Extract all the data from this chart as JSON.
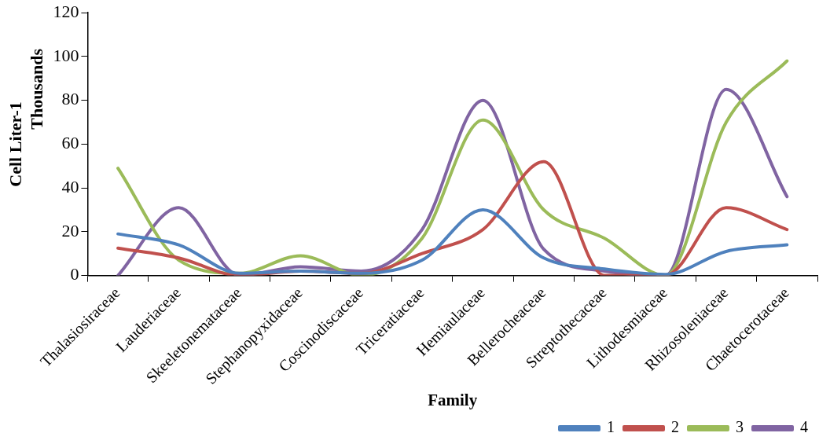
{
  "chart_data": {
    "type": "line",
    "xlabel": "Family",
    "ylabel": "Cell Liter-1",
    "annotations": [
      "Thousands"
    ],
    "categories": [
      "Thalasiosiraceae",
      "Lauderiaceae",
      "Skeeletonemataceae",
      "Stephanopyxidaceae",
      "Coscinodiscaceae",
      "Triceratiaceae",
      "Hemiaulaceae",
      "Bellerocheaceae",
      "Streptothecaceae",
      "Lithodesmiaceae",
      "Rhizosoleniaceae",
      "Chaetocerotaceae"
    ],
    "series": [
      {
        "name": "1",
        "color": "#4f81bd",
        "values": [
          19,
          14,
          1,
          2,
          1,
          7,
          30,
          8,
          3,
          0.5,
          11,
          14
        ]
      },
      {
        "name": "2",
        "color": "#c0504d",
        "values": [
          12.5,
          8,
          0,
          2,
          1,
          10,
          21,
          52,
          0,
          0,
          31,
          21
        ]
      },
      {
        "name": "3",
        "color": "#9bbb59",
        "values": [
          49,
          7,
          1,
          9,
          0,
          17,
          71,
          30,
          17,
          0,
          70,
          98
        ]
      },
      {
        "name": "4",
        "color": "#8064a2",
        "values": [
          0,
          31,
          0,
          4,
          2,
          21,
          80,
          12,
          2,
          0,
          85,
          36
        ]
      }
    ],
    "ylim": [
      0,
      120
    ],
    "yticks": [
      0,
      20,
      40,
      60,
      80,
      100,
      120
    ],
    "grid": false,
    "legend": "bottom right",
    "marker": "none",
    "line_style": "solid"
  }
}
